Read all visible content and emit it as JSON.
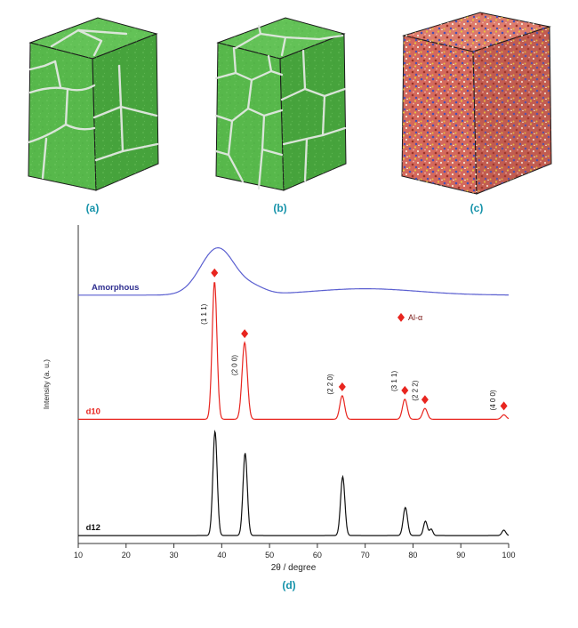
{
  "figure": {
    "caption_color": "#1693aa",
    "panels": [
      {
        "label": "(a)"
      },
      {
        "label": "(b)"
      },
      {
        "label": "(c)"
      },
      {
        "label": "(d)"
      }
    ]
  },
  "chart_data": {
    "type": "line",
    "title": "",
    "xlabel": "2θ / degree",
    "ylabel": "Intensity (a. u.)",
    "xlim": [
      10,
      100
    ],
    "xticks": [
      10,
      20,
      30,
      40,
      50,
      60,
      70,
      80,
      90,
      100
    ],
    "grid": false,
    "marker_color": "#e8251f",
    "legend": {
      "label": "Al-α",
      "label_color": "#7a1714",
      "x": 77.5,
      "y_frac": 0.29
    },
    "series": [
      {
        "name": "Amorphous",
        "color": "#5a5fd0",
        "label_color": "#2e2e8f",
        "baseline_frac": 0.22,
        "label_x": 12.8,
        "peaks": [
          {
            "center": 39.2,
            "sigma": 3.6,
            "height_frac": 0.148
          },
          {
            "center": 47.0,
            "sigma": 2.5,
            "height_frac": 0.018
          },
          {
            "center": 70.0,
            "sigma": 11.0,
            "height_frac": 0.02
          }
        ]
      },
      {
        "name": "d10",
        "color": "#e8251f",
        "label_color": "#e8251f",
        "baseline_frac": 0.61,
        "label_x": 11.6,
        "peaks": [
          {
            "center": 38.5,
            "sigma": 0.5,
            "height_frac": 0.432
          },
          {
            "center": 44.8,
            "sigma": 0.55,
            "height_frac": 0.241
          },
          {
            "center": 65.2,
            "sigma": 0.5,
            "height_frac": 0.074
          },
          {
            "center": 78.3,
            "sigma": 0.5,
            "height_frac": 0.063
          },
          {
            "center": 82.5,
            "sigma": 0.5,
            "height_frac": 0.034
          },
          {
            "center": 99.0,
            "sigma": 0.5,
            "height_frac": 0.014
          }
        ]
      },
      {
        "name": "d12",
        "color": "#111111",
        "label_color": "#111111",
        "baseline_frac": 0.975,
        "label_x": 11.6,
        "peaks": [
          {
            "center": 38.6,
            "sigma": 0.45,
            "height_frac": 0.327
          },
          {
            "center": 44.9,
            "sigma": 0.45,
            "height_frac": 0.259
          },
          {
            "center": 65.3,
            "sigma": 0.45,
            "height_frac": 0.185
          },
          {
            "center": 78.4,
            "sigma": 0.45,
            "height_frac": 0.088
          },
          {
            "center": 82.6,
            "sigma": 0.4,
            "height_frac": 0.045
          },
          {
            "center": 83.8,
            "sigma": 0.35,
            "height_frac": 0.02
          },
          {
            "center": 99.0,
            "sigma": 0.4,
            "height_frac": 0.017
          }
        ]
      }
    ],
    "annotations": [
      {
        "hkl": "(1 1 1)",
        "x": 38.5,
        "label_x": 36.8,
        "label_y_frac": 0.28
      },
      {
        "hkl": "(2 0 0)",
        "x": 44.8,
        "label_x": 43.2,
        "label_y_frac": 0.44
      },
      {
        "hkl": "(2 2 0)",
        "x": 65.2,
        "label_x": 63.2,
        "label_y_frac": 0.5
      },
      {
        "hkl": "(3 1 1)",
        "x": 78.3,
        "label_x": 76.6,
        "label_y_frac": 0.49
      },
      {
        "hkl": "(2 2 2)",
        "x": 82.5,
        "label_x": 80.9,
        "label_y_frac": 0.52
      },
      {
        "hkl": "(4 0 0)",
        "x": 99.0,
        "label_x": 97.2,
        "label_y_frac": 0.55
      }
    ]
  }
}
